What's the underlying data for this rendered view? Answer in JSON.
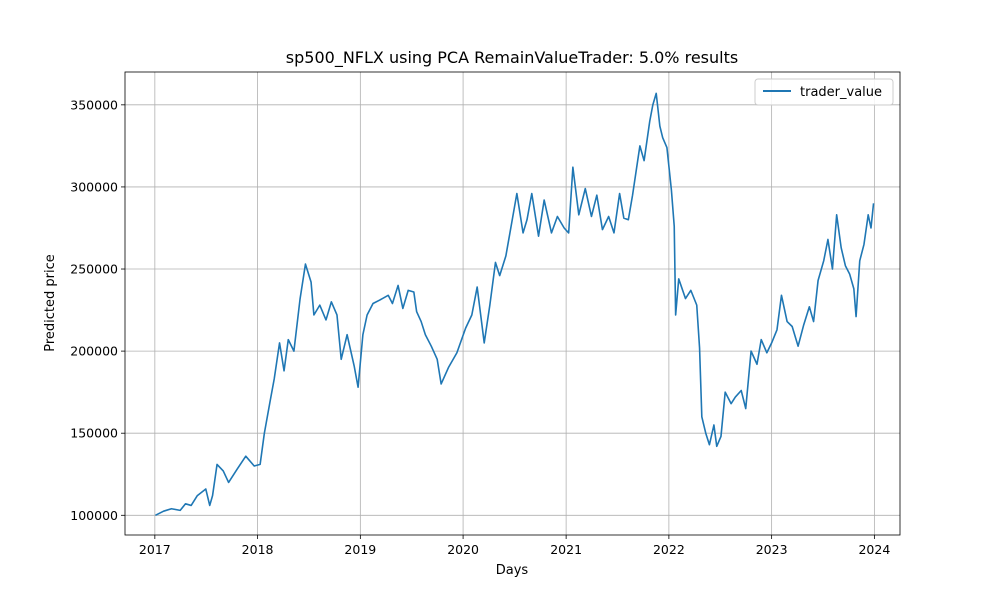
{
  "chart_data": {
    "type": "line",
    "title": "sp500_NFLX using PCA RemainValueTrader: 5.0% results",
    "xlabel": "Days",
    "ylabel": "Predicted price",
    "xlim": [
      "2016-09-17",
      "2024-04-01"
    ],
    "ylim": [
      88000,
      370000
    ],
    "grid": true,
    "legend": {
      "position": "top-right",
      "entries": [
        "trader_value"
      ]
    },
    "xticks": [
      "2017-01-01",
      "2018-01-01",
      "2019-01-01",
      "2020-01-01",
      "2021-01-01",
      "2022-01-01",
      "2023-01-01",
      "2024-01-01"
    ],
    "xtick_labels": [
      "2017",
      "2018",
      "2019",
      "2020",
      "2021",
      "2022",
      "2023",
      "2024"
    ],
    "yticks": [
      100000,
      150000,
      200000,
      250000,
      300000,
      350000
    ],
    "ytick_labels": [
      "100000",
      "150000",
      "200000",
      "250000",
      "300000",
      "350000"
    ],
    "series": [
      {
        "name": "trader_value",
        "color": "#1f77b4",
        "points": [
          [
            "2017-01-03",
            100000
          ],
          [
            "2017-02-01",
            102500
          ],
          [
            "2017-03-01",
            104000
          ],
          [
            "2017-04-01",
            103000
          ],
          [
            "2017-04-20",
            107000
          ],
          [
            "2017-05-10",
            106000
          ],
          [
            "2017-06-01",
            112000
          ],
          [
            "2017-07-01",
            116000
          ],
          [
            "2017-07-15",
            106000
          ],
          [
            "2017-07-25",
            112000
          ],
          [
            "2017-08-10",
            131000
          ],
          [
            "2017-09-01",
            127000
          ],
          [
            "2017-09-20",
            120000
          ],
          [
            "2017-10-20",
            128000
          ],
          [
            "2017-11-20",
            136000
          ],
          [
            "2017-12-20",
            130000
          ],
          [
            "2018-01-10",
            131000
          ],
          [
            "2018-01-25",
            150000
          ],
          [
            "2018-02-15",
            170000
          ],
          [
            "2018-03-01",
            183000
          ],
          [
            "2018-03-20",
            205000
          ],
          [
            "2018-04-05",
            188000
          ],
          [
            "2018-04-20",
            207000
          ],
          [
            "2018-05-10",
            200000
          ],
          [
            "2018-06-01",
            232000
          ],
          [
            "2018-06-20",
            253000
          ],
          [
            "2018-07-10",
            242000
          ],
          [
            "2018-07-20",
            222000
          ],
          [
            "2018-08-10",
            228000
          ],
          [
            "2018-09-01",
            219000
          ],
          [
            "2018-09-20",
            230000
          ],
          [
            "2018-10-10",
            222000
          ],
          [
            "2018-10-25",
            195000
          ],
          [
            "2018-11-15",
            210000
          ],
          [
            "2018-12-10",
            191000
          ],
          [
            "2018-12-24",
            178000
          ],
          [
            "2019-01-10",
            210000
          ],
          [
            "2019-01-25",
            222000
          ],
          [
            "2019-02-15",
            229000
          ],
          [
            "2019-03-10",
            231000
          ],
          [
            "2019-04-10",
            234000
          ],
          [
            "2019-04-25",
            229000
          ],
          [
            "2019-05-15",
            240000
          ],
          [
            "2019-06-01",
            226000
          ],
          [
            "2019-06-20",
            237000
          ],
          [
            "2019-07-10",
            236000
          ],
          [
            "2019-07-20",
            224000
          ],
          [
            "2019-08-05",
            218000
          ],
          [
            "2019-08-20",
            210000
          ],
          [
            "2019-09-10",
            203000
          ],
          [
            "2019-10-01",
            195000
          ],
          [
            "2019-10-15",
            180000
          ],
          [
            "2019-11-10",
            190000
          ],
          [
            "2019-12-10",
            199000
          ],
          [
            "2020-01-10",
            214000
          ],
          [
            "2020-02-01",
            222000
          ],
          [
            "2020-02-20",
            239000
          ],
          [
            "2020-03-16",
            205000
          ],
          [
            "2020-04-05",
            228000
          ],
          [
            "2020-04-25",
            254000
          ],
          [
            "2020-05-10",
            246000
          ],
          [
            "2020-06-01",
            258000
          ],
          [
            "2020-07-10",
            296000
          ],
          [
            "2020-08-01",
            272000
          ],
          [
            "2020-08-15",
            280000
          ],
          [
            "2020-09-01",
            296000
          ],
          [
            "2020-09-25",
            270000
          ],
          [
            "2020-10-15",
            292000
          ],
          [
            "2020-11-10",
            272000
          ],
          [
            "2020-12-01",
            282000
          ],
          [
            "2020-12-25",
            275000
          ],
          [
            "2021-01-10",
            272000
          ],
          [
            "2021-01-25",
            312000
          ],
          [
            "2021-02-15",
            283000
          ],
          [
            "2021-03-10",
            299000
          ],
          [
            "2021-04-01",
            282000
          ],
          [
            "2021-04-20",
            295000
          ],
          [
            "2021-05-10",
            274000
          ],
          [
            "2021-06-01",
            282000
          ],
          [
            "2021-06-20",
            272000
          ],
          [
            "2021-07-10",
            296000
          ],
          [
            "2021-07-25",
            281000
          ],
          [
            "2021-08-10",
            280000
          ],
          [
            "2021-08-25",
            295000
          ],
          [
            "2021-09-20",
            325000
          ],
          [
            "2021-10-05",
            316000
          ],
          [
            "2021-10-25",
            340000
          ],
          [
            "2021-11-05",
            350000
          ],
          [
            "2021-11-17",
            357000
          ],
          [
            "2021-11-30",
            337000
          ],
          [
            "2021-12-10",
            330000
          ],
          [
            "2021-12-25",
            324000
          ],
          [
            "2022-01-10",
            298000
          ],
          [
            "2022-01-20",
            276000
          ],
          [
            "2022-01-25",
            222000
          ],
          [
            "2022-02-05",
            244000
          ],
          [
            "2022-03-01",
            232000
          ],
          [
            "2022-03-20",
            237000
          ],
          [
            "2022-04-10",
            228000
          ],
          [
            "2022-04-20",
            202000
          ],
          [
            "2022-04-28",
            160000
          ],
          [
            "2022-05-12",
            150000
          ],
          [
            "2022-05-25",
            143000
          ],
          [
            "2022-06-10",
            155000
          ],
          [
            "2022-06-20",
            142000
          ],
          [
            "2022-07-05",
            148000
          ],
          [
            "2022-07-20",
            175000
          ],
          [
            "2022-08-10",
            168000
          ],
          [
            "2022-08-25",
            172000
          ],
          [
            "2022-09-15",
            176000
          ],
          [
            "2022-10-01",
            165000
          ],
          [
            "2022-10-20",
            200000
          ],
          [
            "2022-11-10",
            192000
          ],
          [
            "2022-11-25",
            207000
          ],
          [
            "2022-12-15",
            199000
          ],
          [
            "2023-01-01",
            205000
          ],
          [
            "2023-01-20",
            213000
          ],
          [
            "2023-02-05",
            234000
          ],
          [
            "2023-02-25",
            218000
          ],
          [
            "2023-03-15",
            215000
          ],
          [
            "2023-04-05",
            203000
          ],
          [
            "2023-04-25",
            216000
          ],
          [
            "2023-05-15",
            227000
          ],
          [
            "2023-05-30",
            218000
          ],
          [
            "2023-06-15",
            243000
          ],
          [
            "2023-07-05",
            255000
          ],
          [
            "2023-07-20",
            268000
          ],
          [
            "2023-08-05",
            250000
          ],
          [
            "2023-08-20",
            283000
          ],
          [
            "2023-09-05",
            263000
          ],
          [
            "2023-09-20",
            252000
          ],
          [
            "2023-10-05",
            247000
          ],
          [
            "2023-10-20",
            238000
          ],
          [
            "2023-10-28",
            221000
          ],
          [
            "2023-11-10",
            255000
          ],
          [
            "2023-11-25",
            265000
          ],
          [
            "2023-12-10",
            283000
          ],
          [
            "2023-12-20",
            275000
          ],
          [
            "2023-12-29",
            290000
          ]
        ]
      }
    ]
  }
}
